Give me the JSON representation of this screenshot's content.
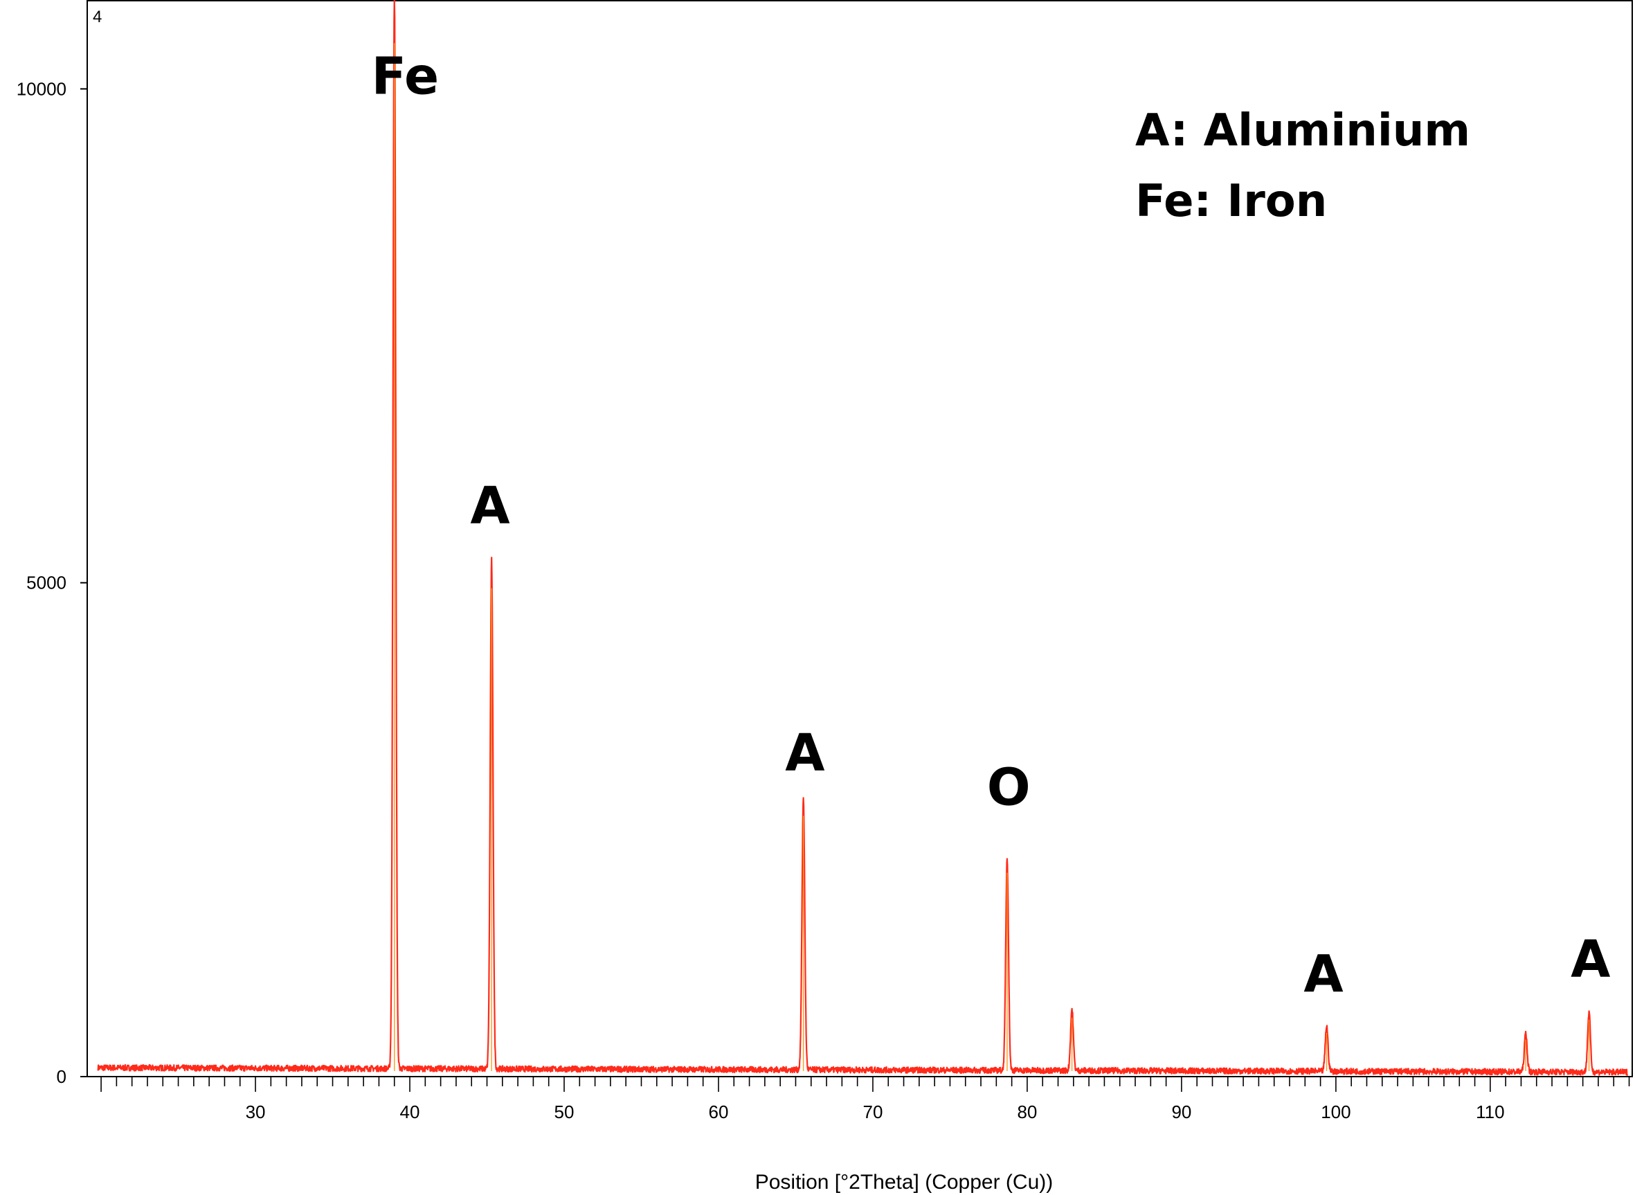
{
  "chart_data": {
    "type": "line",
    "title": "",
    "corner_label": "4",
    "xlabel": "Position [°2Theta] (Copper (Cu))",
    "ylabel": "",
    "xlim": [
      19.1,
      119.2
    ],
    "ylim": [
      0,
      10900
    ],
    "x_ticks": [
      30,
      40,
      50,
      60,
      70,
      80,
      90,
      100,
      110
    ],
    "x_tick_labels": [
      "30",
      "40",
      "50",
      "60",
      "70",
      "80",
      "90",
      "100",
      "110"
    ],
    "y_ticks": [
      0,
      5000,
      10000
    ],
    "y_tick_labels": [
      "0",
      "5000",
      "10000"
    ],
    "grid": false,
    "series_color": "#ff2a1a",
    "baseline": 90,
    "peaks": [
      {
        "x": 39.0,
        "y": 10900
      },
      {
        "x": 45.3,
        "y": 5150
      },
      {
        "x": 65.5,
        "y": 2750
      },
      {
        "x": 78.7,
        "y": 2150
      },
      {
        "x": 82.9,
        "y": 620
      },
      {
        "x": 99.4,
        "y": 460
      },
      {
        "x": 112.3,
        "y": 390
      },
      {
        "x": 116.4,
        "y": 600
      }
    ],
    "annotations": [
      {
        "text": "Fe",
        "x": 39.7,
        "y": 9950
      },
      {
        "text": "A",
        "x": 45.2,
        "y": 5600
      },
      {
        "text": "A",
        "x": 65.6,
        "y": 3100
      },
      {
        "text": "O",
        "x": 78.8,
        "y": 2750
      },
      {
        "text": "A",
        "x": 99.2,
        "y": 860
      },
      {
        "text": "A",
        "x": 116.5,
        "y": 1010
      }
    ],
    "legend": {
      "position": "top-right",
      "entries": [
        "A: Aluminium",
        "Fe: Iron"
      ]
    }
  }
}
